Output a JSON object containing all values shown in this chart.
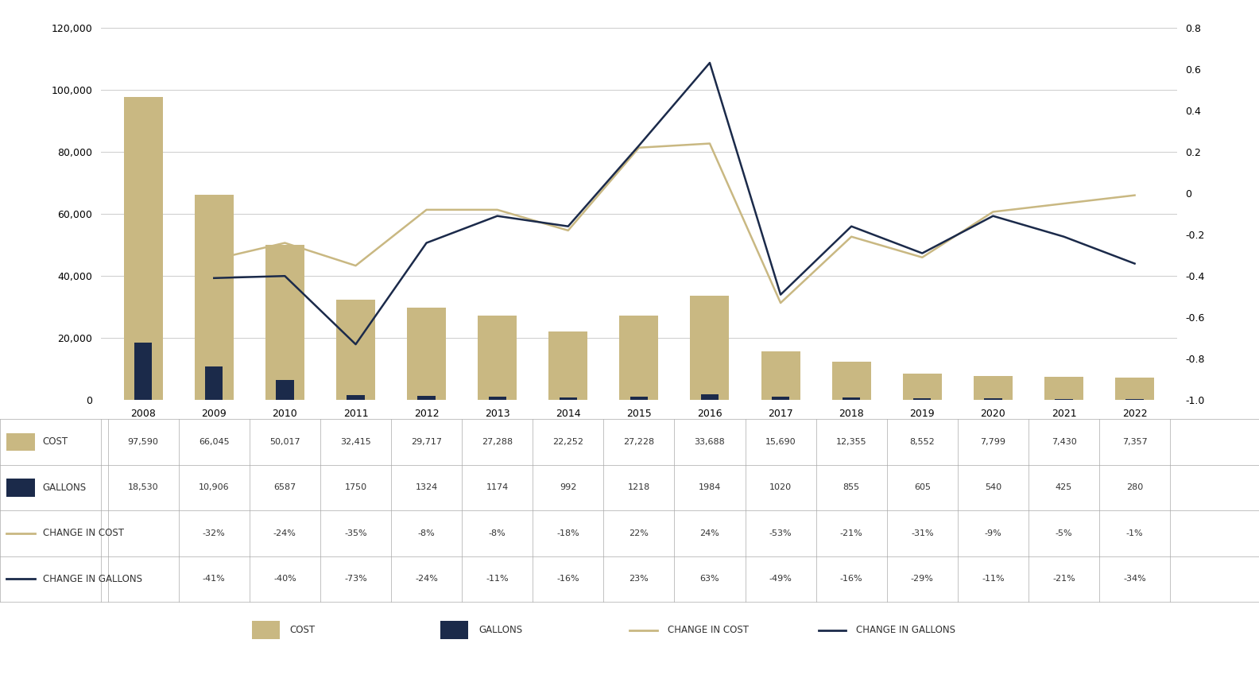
{
  "years": [
    2008,
    2009,
    2010,
    2011,
    2012,
    2013,
    2014,
    2015,
    2016,
    2017,
    2018,
    2019,
    2020,
    2021,
    2022
  ],
  "cost": [
    97590,
    66045,
    50017,
    32415,
    29717,
    27288,
    22252,
    27228,
    33688,
    15690,
    12355,
    8552,
    7799,
    7430,
    7357
  ],
  "gallons": [
    18530,
    10906,
    6587,
    1750,
    1324,
    1174,
    992,
    1218,
    1984,
    1020,
    855,
    605,
    540,
    425,
    280
  ],
  "change_in_cost": [
    null,
    -0.32,
    -0.24,
    -0.35,
    -0.08,
    -0.08,
    -0.18,
    0.22,
    0.24,
    -0.53,
    -0.21,
    -0.31,
    -0.09,
    -0.05,
    -0.01
  ],
  "change_in_gallons": [
    null,
    -0.41,
    -0.4,
    -0.73,
    -0.24,
    -0.11,
    -0.16,
    0.23,
    0.63,
    -0.49,
    -0.16,
    -0.29,
    -0.11,
    -0.21,
    -0.34
  ],
  "bar_cost_color": "#C9B882",
  "bar_gallons_color": "#1B2A4A",
  "line_cost_color": "#C9B882",
  "line_gallons_color": "#1B2A4A",
  "background_color": "#FFFFFF",
  "grid_color": "#CCCCCC",
  "ylim_left": [
    0,
    120000
  ],
  "ylim_right": [
    -1.0,
    0.8
  ],
  "yticks_left": [
    0,
    20000,
    40000,
    60000,
    80000,
    100000,
    120000
  ],
  "yticks_right": [
    -1.0,
    -0.8,
    -0.6,
    -0.4,
    -0.2,
    0.0,
    0.2,
    0.4,
    0.6,
    0.8
  ],
  "cost_values": [
    "97,590",
    "66,045",
    "50,017",
    "32,415",
    "29,717",
    "27,288",
    "22,252",
    "27,228",
    "33,688",
    "15,690",
    "12,355",
    "8,552",
    "7,799",
    "7,430",
    "7,357"
  ],
  "gallons_values": [
    "18,530",
    "10,906",
    "6587",
    "1750",
    "1324",
    "1174",
    "992",
    "1218",
    "1984",
    "1020",
    "855",
    "605",
    "540",
    "425",
    "280"
  ],
  "change_cost_values": [
    "",
    "-32%",
    "-24%",
    "-35%",
    "-8%",
    "-8%",
    "-18%",
    "22%",
    "24%",
    "-53%",
    "-21%",
    "-31%",
    "-9%",
    "-5%",
    "-1%"
  ],
  "change_gallons_values": [
    "",
    "-41%",
    "-40%",
    "-73%",
    "-24%",
    "-11%",
    "-16%",
    "23%",
    "63%",
    "-49%",
    "-16%",
    "-29%",
    "-11%",
    "-21%",
    "-34%"
  ]
}
